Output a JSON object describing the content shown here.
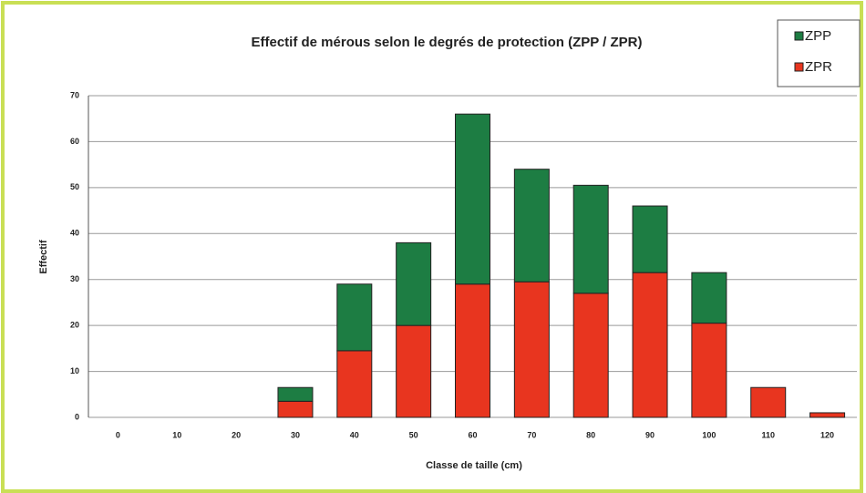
{
  "chart_data": {
    "type": "stacked_bar",
    "title": "Effectif de mérous selon le degrés de protection (ZPP / ZPR)",
    "x_label": "Classe de taille (cm)",
    "y_label": "Effectif",
    "categories": [
      "0",
      "10",
      "20",
      "30",
      "40",
      "50",
      "60",
      "70",
      "80",
      "90",
      "100",
      "110",
      "120"
    ],
    "series": [
      {
        "name": "ZPR",
        "color": "#e8351f",
        "values": [
          0,
          0,
          0,
          3.5,
          14.5,
          20,
          29,
          29.5,
          27,
          31.5,
          20.5,
          6.5,
          1
        ]
      },
      {
        "name": "ZPP",
        "color": "#1d7d43",
        "values": [
          0,
          0,
          0,
          3,
          14.5,
          18,
          37,
          24.5,
          23.5,
          14.5,
          11,
          0,
          0
        ]
      }
    ],
    "ylim": [
      0,
      70
    ],
    "yticks": [
      0,
      10,
      20,
      30,
      40,
      50,
      60,
      70
    ],
    "grid": true
  }
}
